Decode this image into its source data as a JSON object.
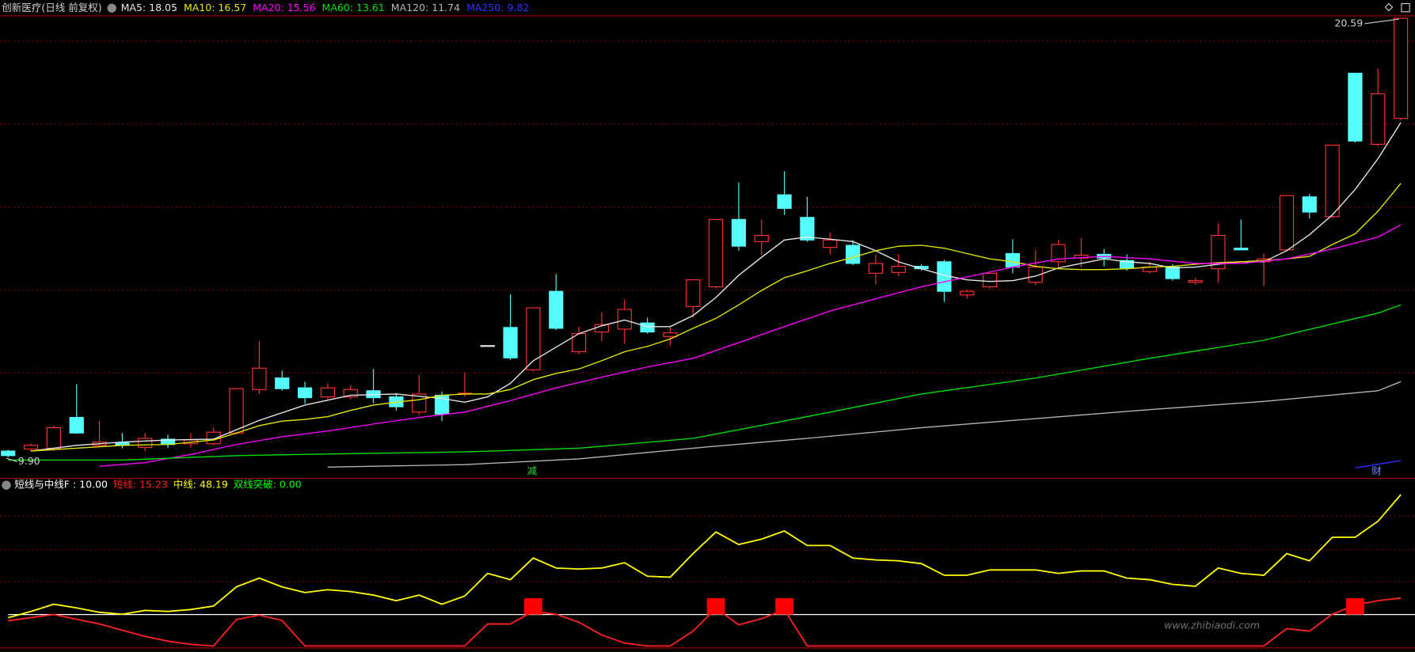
{
  "chart_data": [
    {
      "type": "candlestick",
      "title": "创新医疗(日线 前复权)",
      "open": [
        10.05,
        10.1,
        10.12,
        10.87,
        10.19,
        10.25,
        10.14,
        10.34,
        10.23,
        10.23,
        10.49,
        11.55,
        11.83,
        11.59,
        11.37,
        11.37,
        11.52,
        11.37,
        11.0,
        11.41,
        11.44,
        12.62,
        13.06,
        12.03,
        13.94,
        12.47,
        12.95,
        13.02,
        13.17,
        12.84,
        13.57,
        14.05,
        15.69,
        15.15,
        16.29,
        15.74,
        15.01,
        15.06,
        14.38,
        14.4,
        14.55,
        14.66,
        13.85,
        14.05,
        14.86,
        14.16,
        14.66,
        14.75,
        14.84,
        14.69,
        14.42,
        14.53,
        14.16,
        14.49,
        14.99,
        14.66,
        14.95,
        16.24,
        15.76,
        19.25,
        17.52,
        18.15
      ],
      "high": [
        10.08,
        10.23,
        10.67,
        11.68,
        10.78,
        10.49,
        10.49,
        10.45,
        10.49,
        10.62,
        11.57,
        12.73,
        12.01,
        11.74,
        11.7,
        11.66,
        12.05,
        11.46,
        11.9,
        11.5,
        11.96,
        12.62,
        13.87,
        13.54,
        14.36,
        13.08,
        13.43,
        13.74,
        13.3,
        13.08,
        14.22,
        15.69,
        16.59,
        15.69,
        16.86,
        16.24,
        15.37,
        15.19,
        14.84,
        14.84,
        14.6,
        14.71,
        13.98,
        14.38,
        15.21,
        14.95,
        15.19,
        15.23,
        14.97,
        14.84,
        14.66,
        14.6,
        14.27,
        15.59,
        15.69,
        14.86,
        16.27,
        16.31,
        17.5,
        19.25,
        19.36,
        20.59
      ],
      "low": [
        9.9,
        10.05,
        10.05,
        10.47,
        10.14,
        10.12,
        10.05,
        10.12,
        10.14,
        10.19,
        10.45,
        11.44,
        11.52,
        11.2,
        11.31,
        11.31,
        11.22,
        11.04,
        10.93,
        10.78,
        11.37,
        12.62,
        12.27,
        11.99,
        13.0,
        12.4,
        12.73,
        12.67,
        12.91,
        12.62,
        13.3,
        14.0,
        14.93,
        14.82,
        15.8,
        15.15,
        14.84,
        14.58,
        14.11,
        14.31,
        14.44,
        13.68,
        13.76,
        14.0,
        14.38,
        14.09,
        14.53,
        14.53,
        14.55,
        14.44,
        14.38,
        14.2,
        14.11,
        14.16,
        14.95,
        14.07,
        14.91,
        15.72,
        15.72,
        17.56,
        17.47,
        18.11
      ],
      "close": [
        9.94,
        10.19,
        10.62,
        10.49,
        10.27,
        10.19,
        10.36,
        10.21,
        10.32,
        10.51,
        11.57,
        12.07,
        11.57,
        11.35,
        11.59,
        11.55,
        11.35,
        11.13,
        11.44,
        10.95,
        11.46,
        12.62,
        12.32,
        13.54,
        13.04,
        12.91,
        13.13,
        13.5,
        12.95,
        12.93,
        14.22,
        15.69,
        15.04,
        15.3,
        15.96,
        15.19,
        15.19,
        14.62,
        14.62,
        14.55,
        14.49,
        13.94,
        13.94,
        14.38,
        14.53,
        14.53,
        15.08,
        14.82,
        14.75,
        14.51,
        14.53,
        14.25,
        14.2,
        15.3,
        14.95,
        14.73,
        16.27,
        15.87,
        17.5,
        17.6,
        18.75,
        20.59
      ],
      "up_color": "#ff3232",
      "down_color": "#54fcfc",
      "flat_color": "#e0e0e0",
      "ylim": [
        9.44,
        20.66
      ],
      "series": [
        {
          "name": "MA5: 18.05",
          "color": "#e8e8e8",
          "x": [
            1,
            3,
            5,
            7,
            9,
            11,
            13,
            15,
            17,
            19,
            20,
            21,
            22,
            23,
            24,
            25,
            26,
            27,
            28,
            29,
            30,
            31,
            32,
            33,
            34,
            35,
            36,
            37,
            38,
            39,
            40,
            41,
            42,
            43,
            44,
            45,
            46,
            47,
            48,
            49,
            50,
            51,
            52,
            53,
            54,
            55,
            56,
            57,
            58,
            59,
            60,
            61
          ],
          "values": [
            10.05,
            10.19,
            10.27,
            10.32,
            10.34,
            10.8,
            11.17,
            11.41,
            11.44,
            11.33,
            11.24,
            11.37,
            11.7,
            12.25,
            12.58,
            12.91,
            13.1,
            13.24,
            13.08,
            13.08,
            13.35,
            13.79,
            14.33,
            14.77,
            15.19,
            15.26,
            15.21,
            15.15,
            14.93,
            14.66,
            14.49,
            14.33,
            14.22,
            14.18,
            14.2,
            14.31,
            14.51,
            14.62,
            14.73,
            14.66,
            14.62,
            14.51,
            14.53,
            14.6,
            14.66,
            14.66,
            14.93,
            15.32,
            15.8,
            16.42,
            17.17,
            18.05
          ]
        },
        {
          "name": "MA10: 16.57",
          "color": "#e6e600",
          "x": [
            1,
            3,
            5,
            7,
            9,
            10,
            11,
            12,
            13,
            14,
            15,
            16,
            17,
            18,
            19,
            20,
            21,
            22,
            23,
            24,
            25,
            26,
            27,
            28,
            29,
            30,
            31,
            32,
            33,
            34,
            35,
            36,
            37,
            38,
            39,
            40,
            41,
            42,
            43,
            44,
            45,
            46,
            47,
            48,
            49,
            50,
            51,
            52,
            53,
            54,
            55,
            56,
            57,
            58,
            59,
            60,
            61
          ],
          "values": [
            10.05,
            10.12,
            10.19,
            10.21,
            10.32,
            10.49,
            10.67,
            10.78,
            10.82,
            10.89,
            11.04,
            11.17,
            11.24,
            11.3,
            11.41,
            11.44,
            11.44,
            11.55,
            11.79,
            11.94,
            12.05,
            12.25,
            12.47,
            12.6,
            12.78,
            13.04,
            13.28,
            13.61,
            13.96,
            14.27,
            14.44,
            14.62,
            14.77,
            14.93,
            15.04,
            15.06,
            14.99,
            14.86,
            14.73,
            14.66,
            14.55,
            14.49,
            14.47,
            14.47,
            14.49,
            14.53,
            14.55,
            14.6,
            14.64,
            14.66,
            14.69,
            14.73,
            14.79,
            15.08,
            15.34,
            15.89,
            16.57
          ]
        },
        {
          "name": "MA20: 15.56",
          "color": "#ff00ff",
          "x": [
            4,
            6,
            8,
            10,
            12,
            14,
            16,
            18,
            20,
            22,
            24,
            26,
            28,
            30,
            32,
            34,
            36,
            38,
            40,
            42,
            44,
            46,
            48,
            50,
            52,
            54,
            56,
            58,
            60,
            61
          ],
          "values": [
            9.68,
            9.77,
            9.97,
            10.21,
            10.4,
            10.54,
            10.71,
            10.87,
            11.0,
            11.28,
            11.59,
            11.85,
            12.1,
            12.31,
            12.69,
            13.08,
            13.46,
            13.76,
            14.05,
            14.29,
            14.53,
            14.73,
            14.79,
            14.73,
            14.62,
            14.62,
            14.73,
            14.97,
            15.26,
            15.56
          ]
        },
        {
          "name": "MA60: 13.61",
          "color": "#00e000",
          "x": [
            0,
            5,
            10,
            15,
            20,
            25,
            30,
            35,
            40,
            45,
            50,
            55,
            60,
            61
          ],
          "values": [
            9.83,
            9.83,
            9.94,
            9.99,
            10.03,
            10.12,
            10.36,
            10.89,
            11.44,
            11.83,
            12.31,
            12.75,
            13.41,
            13.61
          ]
        },
        {
          "name": "MA120: 11.74",
          "color": "#b4b4b4",
          "x": [
            14,
            20,
            25,
            30,
            35,
            40,
            45,
            50,
            55,
            60,
            61
          ],
          "values": [
            9.66,
            9.72,
            9.86,
            10.12,
            10.36,
            10.62,
            10.84,
            11.06,
            11.26,
            11.52,
            11.74
          ]
        },
        {
          "name": "MA250: 9.82",
          "color": "#3232ff",
          "x": [
            59,
            60,
            61
          ],
          "values": [
            9.64,
            9.73,
            9.82
          ]
        }
      ],
      "high_label": 20.59,
      "low_label": {
        "value": 9.9,
        "label": "9.90"
      },
      "annotations": [
        "减",
        "财"
      ]
    },
    {
      "type": "line",
      "title": "短线与中线F : 10.00",
      "reference_line": 10,
      "reference_color": "#ffffff",
      "ylim": [
        -0.5,
        53.5
      ],
      "series": [
        {
          "name": "短线: 15.23",
          "color": "#ff2020",
          "values": [
            8.0,
            9.0,
            10.0,
            8.5,
            7.0,
            5.0,
            3.0,
            1.5,
            0.5,
            0,
            8.4,
            9.8,
            8.1,
            0,
            0,
            0,
            0,
            0,
            0,
            0,
            0,
            7.0,
            7.0,
            11.0,
            10.1,
            7.5,
            3.5,
            0.9,
            0,
            0,
            4.7,
            12.0,
            6.7,
            8.7,
            11.5,
            0,
            0,
            0,
            0,
            0,
            0,
            0,
            0,
            0,
            0,
            0,
            0,
            0,
            0,
            0,
            0,
            0,
            0,
            0,
            0,
            0,
            5.5,
            4.7,
            10.1,
            13.0,
            14.4,
            15.23
          ]
        },
        {
          "name": "中线: 48.19",
          "color": "#ffff00",
          "values": [
            9.0,
            11.0,
            13.3,
            12.1,
            10.7,
            10.1,
            11.3,
            11.0,
            11.6,
            12.7,
            18.8,
            21.6,
            18.8,
            17.0,
            17.9,
            17.3,
            16.2,
            14.4,
            16.2,
            13.3,
            15.9,
            23.1,
            21.1,
            28.0,
            24.8,
            24.5,
            24.8,
            26.5,
            22.2,
            21.9,
            29.4,
            36.3,
            32.3,
            34.0,
            36.6,
            32.0,
            32.0,
            28.0,
            27.4,
            27.1,
            26.2,
            22.5,
            22.5,
            24.2,
            24.2,
            24.2,
            23.1,
            23.9,
            23.9,
            21.6,
            21.1,
            19.6,
            19.0,
            24.8,
            23.1,
            22.5,
            29.4,
            27.1,
            34.6,
            34.6,
            39.7,
            48.19
          ]
        },
        {
          "name": "双线突破: 0.00",
          "color": "#00ff00",
          "marker_color": "#ff0000",
          "kind": "marker",
          "x": [
            23,
            31,
            34,
            59
          ],
          "values": [
            10,
            10,
            10,
            10
          ]
        }
      ]
    }
  ],
  "watermark": "www.zhibiaodi.com"
}
